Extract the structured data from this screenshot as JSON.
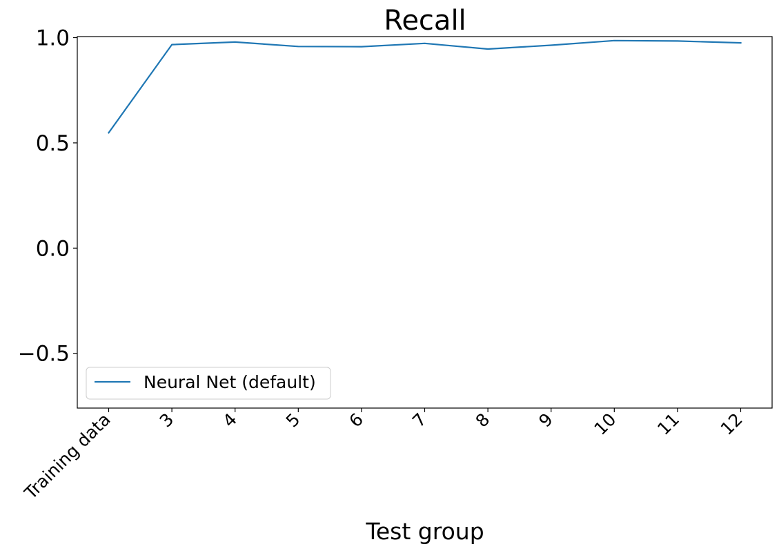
{
  "chart_data": {
    "type": "line",
    "title": "Recall",
    "xlabel": "Test group",
    "ylabel": "",
    "categories": [
      "Training data",
      "3",
      "4",
      "5",
      "6",
      "7",
      "8",
      "9",
      "10",
      "11",
      "12"
    ],
    "series": [
      {
        "name": "Neural Net (default)",
        "color": "#1f77b4",
        "values": [
          0.548,
          0.967,
          0.979,
          0.958,
          0.957,
          0.973,
          0.946,
          0.964,
          0.986,
          0.984,
          0.975
        ]
      }
    ],
    "ylim": [
      -0.76,
      1.005
    ],
    "yticks": [
      -0.5,
      0.0,
      0.5,
      1.0
    ],
    "ytick_labels": [
      "−0.5",
      "0.0",
      "0.5",
      "1.0"
    ],
    "grid": false,
    "legend_position": "lower-left"
  }
}
